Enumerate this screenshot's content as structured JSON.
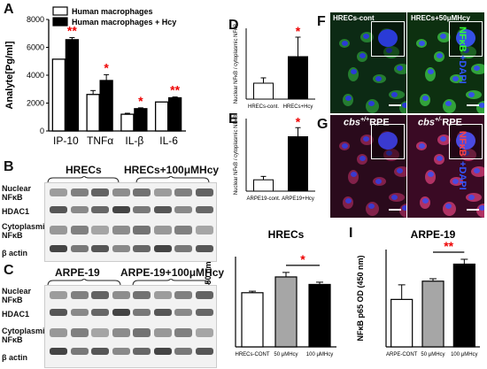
{
  "panels": {
    "A": "A",
    "B": "B",
    "C": "C",
    "D": "D",
    "E": "E",
    "F": "F",
    "G": "G",
    "H": "H",
    "I": "I"
  },
  "chart_data": [
    {
      "panel": "A",
      "type": "bar",
      "categories": [
        "IP-10",
        "TNFα",
        "IL-β",
        "IL-6"
      ],
      "series": [
        {
          "name": "Human macrophages",
          "values": [
            5150,
            2620,
            1200,
            2080
          ],
          "errors": [
            0,
            280,
            70,
            0
          ],
          "color": "#ffffff"
        },
        {
          "name": "Human macrophages + Hcy",
          "values": [
            6550,
            3620,
            1600,
            2380
          ],
          "errors": [
            150,
            420,
            60,
            60
          ],
          "color": "#000000"
        }
      ],
      "significance": [
        "**",
        "*",
        "*",
        "**"
      ],
      "ylabel": "Analyte[Pg/ml]",
      "yticks": [
        "0",
        "2000",
        "4000",
        "6000",
        "8000"
      ],
      "ylim": [
        0,
        8000
      ]
    },
    {
      "panel": "D",
      "type": "bar",
      "categories": [
        "HRECs-cont.",
        "HRECs+Hcy"
      ],
      "values": [
        0.09,
        0.24
      ],
      "errors": [
        0.03,
        0.11
      ],
      "colors": [
        "#ffffff",
        "#000000"
      ],
      "significance": [
        "",
        "*"
      ],
      "ylabel": "Nuclear NFκB / cytoplasmic NFκB",
      "ylim": [
        0,
        0.4
      ]
    },
    {
      "panel": "E",
      "type": "bar",
      "categories": [
        "ARPE19-cont.",
        "ARPE19+Hcy"
      ],
      "values": [
        0.05,
        0.24
      ],
      "errors": [
        0.015,
        0.04
      ],
      "colors": [
        "#ffffff",
        "#000000"
      ],
      "significance": [
        "",
        "*"
      ],
      "ylabel": "Nuclear NFκB / cytoplasmic NFκB",
      "ylim": [
        0,
        0.32
      ]
    },
    {
      "panel": "H",
      "type": "bar",
      "title": "HRECs",
      "categories": [
        "HRECs-CONT",
        "50 μMHcy",
        "100 μMHcy"
      ],
      "values": [
        0.36,
        0.465,
        0.415
      ],
      "errors": [
        0.01,
        0.03,
        0.015
      ],
      "colors": [
        "#ffffff",
        "#a6a6a6",
        "#000000"
      ],
      "significance_bracket": {
        "from": 1,
        "to": 2,
        "label": "*"
      },
      "ylabel": "NFκB p65 OD (450 nm)",
      "ylim": [
        0,
        0.6
      ]
    },
    {
      "panel": "I",
      "type": "bar",
      "title": "ARPE-19",
      "categories": [
        "ARPE-CONT",
        "50 μMHcy",
        "100 μMHcy"
      ],
      "values": [
        0.39,
        0.54,
        0.68
      ],
      "errors": [
        0.12,
        0.02,
        0.04
      ],
      "colors": [
        "#ffffff",
        "#a6a6a6",
        "#000000"
      ],
      "significance_bracket": {
        "from": 1,
        "to": 2,
        "label": "**"
      },
      "ylabel": "NFκB p65 OD (450 nm)",
      "ylim": [
        0,
        0.8
      ]
    }
  ],
  "blot_B": {
    "group1": "HRECs",
    "group2": "HRECs+100μMHcy",
    "rows": [
      "Nuclear NFκB",
      "HDAC1",
      "Cytoplasmic NFκB",
      "β actin"
    ]
  },
  "blot_C": {
    "group1": "ARPE-19",
    "group2": "ARPE-19+100μMHcy",
    "rows": [
      "Nuclear NFκB",
      "HDAC1",
      "Cytoplasmic NFκB",
      "β actin"
    ]
  },
  "micro_F": {
    "left": "HRECs-cont",
    "right": "HRECs+50μMHcy",
    "stain1": "NFκB",
    "stain2": "+DAPI"
  },
  "micro_G": {
    "left": "cbs+/+RPE",
    "right": "cbs+/-RPE",
    "stain1": "NFκB",
    "stain2": "+DAPI"
  }
}
